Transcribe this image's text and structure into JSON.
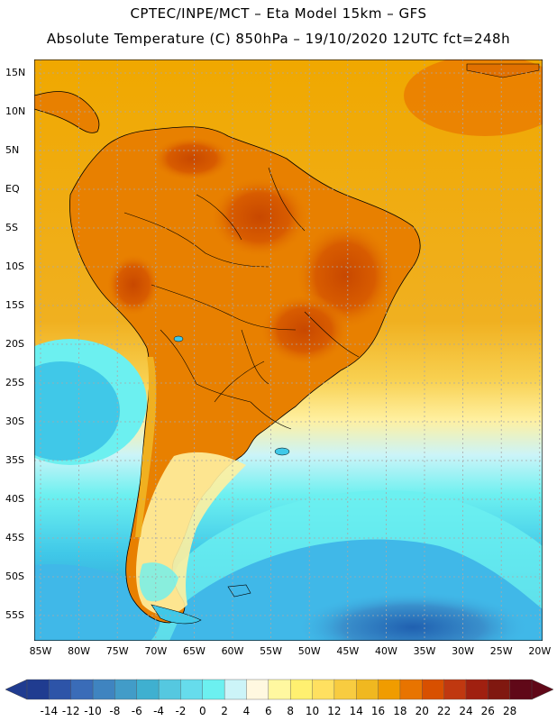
{
  "header": {
    "line1": "CPTEC/INPE/MCT –  Eta Model 15km – GFS",
    "line2": "Absolute Temperature (C) 850hPa – 19/10/2020 12UTC fct=248h"
  },
  "map": {
    "lat_labels": [
      "15N",
      "10N",
      "5N",
      "EQ",
      "5S",
      "10S",
      "15S",
      "20S",
      "25S",
      "30S",
      "35S",
      "40S",
      "45S",
      "50S",
      "55S"
    ],
    "lon_labels": [
      "85W",
      "80W",
      "75W",
      "70W",
      "65W",
      "60W",
      "55W",
      "50W",
      "45W",
      "40W",
      "35W",
      "30W",
      "25W",
      "20W"
    ],
    "palette": {
      "ocean_north": "#f0a800",
      "land_north": "#e07000",
      "land_hot": "#c84800",
      "south_cold": "#40b8e8",
      "deep_cold": "#2078c0",
      "coastline": "#000000",
      "grid": "#a0a0a0"
    }
  },
  "colorbar": {
    "labels": [
      "-14",
      "-12",
      "-10",
      "-8",
      "-6",
      "-4",
      "-2",
      "0",
      "2",
      "4",
      "6",
      "8",
      "10",
      "12",
      "14",
      "16",
      "18",
      "20",
      "22",
      "24",
      "26",
      "28"
    ],
    "colors": [
      "#203c90",
      "#2d54a8",
      "#3a6cb8",
      "#3f84c0",
      "#429cc8",
      "#3fb0d0",
      "#55c8e0",
      "#66dcec",
      "#6cf0f0",
      "#ccf4f8",
      "#fff8e0",
      "#fff8a0",
      "#fff070",
      "#ffe060",
      "#f8cc40",
      "#f0b820",
      "#f09c00",
      "#e87400",
      "#d85000",
      "#c03810",
      "#a02010",
      "#801810",
      "#600818"
    ]
  }
}
